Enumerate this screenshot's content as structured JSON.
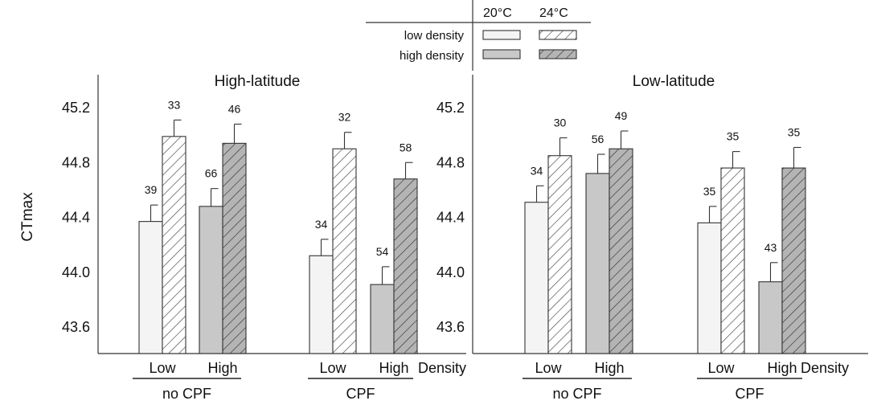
{
  "chart_data": {
    "type": "bar",
    "ylabel": "CTmax",
    "ylim": [
      43.4,
      45.4
    ],
    "yticks": [
      "43.6",
      "44.0",
      "44.4",
      "44.8",
      "45.2"
    ],
    "density_label": "Density",
    "legend": {
      "temp_headers": [
        "20°C",
        "24°C"
      ],
      "rows": [
        "low density",
        "high density"
      ]
    },
    "panels": [
      {
        "title": "High-latitude",
        "groups": [
          {
            "treatment": "no CPF",
            "density": "Low",
            "bars": [
              {
                "temp": "20°C",
                "value": 44.37,
                "error": 0.12,
                "n": "39"
              },
              {
                "temp": "24°C",
                "value": 44.99,
                "error": 0.12,
                "n": "33"
              }
            ]
          },
          {
            "treatment": "no CPF",
            "density": "High",
            "bars": [
              {
                "temp": "20°C",
                "value": 44.48,
                "error": 0.13,
                "n": "66"
              },
              {
                "temp": "24°C",
                "value": 44.94,
                "error": 0.14,
                "n": "46"
              }
            ]
          },
          {
            "treatment": "CPF",
            "density": "Low",
            "bars": [
              {
                "temp": "20°C",
                "value": 44.12,
                "error": 0.12,
                "n": "34"
              },
              {
                "temp": "24°C",
                "value": 44.9,
                "error": 0.12,
                "n": "32"
              }
            ]
          },
          {
            "treatment": "CPF",
            "density": "High",
            "bars": [
              {
                "temp": "20°C",
                "value": 43.91,
                "error": 0.13,
                "n": "54"
              },
              {
                "temp": "24°C",
                "value": 44.68,
                "error": 0.12,
                "n": "58"
              }
            ]
          }
        ],
        "treatments": [
          "no CPF",
          "CPF"
        ]
      },
      {
        "title": "Low-latitude",
        "groups": [
          {
            "treatment": "no CPF",
            "density": "Low",
            "bars": [
              {
                "temp": "20°C",
                "value": 44.51,
                "error": 0.12,
                "n": "34"
              },
              {
                "temp": "24°C",
                "value": 44.85,
                "error": 0.13,
                "n": "30"
              }
            ]
          },
          {
            "treatment": "no CPF",
            "density": "High",
            "bars": [
              {
                "temp": "20°C",
                "value": 44.72,
                "error": 0.14,
                "n": "56"
              },
              {
                "temp": "24°C",
                "value": 44.9,
                "error": 0.13,
                "n": "49"
              }
            ]
          },
          {
            "treatment": "CPF",
            "density": "Low",
            "bars": [
              {
                "temp": "20°C",
                "value": 44.36,
                "error": 0.12,
                "n": "35"
              },
              {
                "temp": "24°C",
                "value": 44.76,
                "error": 0.12,
                "n": "35"
              }
            ]
          },
          {
            "treatment": "CPF",
            "density": "High",
            "bars": [
              {
                "temp": "20°C",
                "value": 43.93,
                "error": 0.14,
                "n": "43"
              },
              {
                "temp": "24°C",
                "value": 44.76,
                "error": 0.15,
                "n": "35"
              }
            ]
          }
        ],
        "treatments": [
          "no CPF",
          "CPF"
        ]
      }
    ],
    "colors": {
      "low_20": "#f4f4f4",
      "high_20": "#c8c8c8",
      "low_24": "#ffffff",
      "high_24": "#b4b4b4",
      "hatch": "#444444",
      "bar_stroke": "#333333"
    }
  }
}
